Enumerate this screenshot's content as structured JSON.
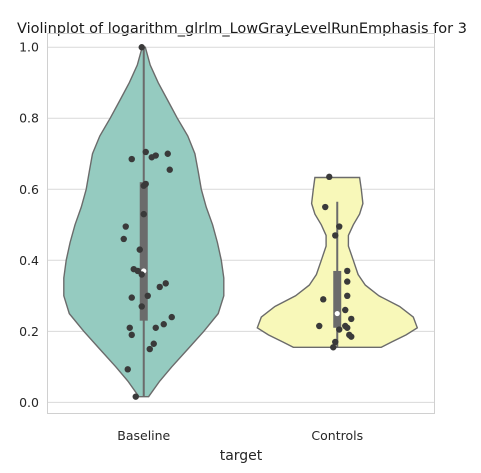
{
  "chart_data": {
    "type": "violin",
    "title": "Violinplot of logarithm_glrlm_LowGrayLevelRunEmphasis for 3",
    "xlabel": "target",
    "ylabel": "",
    "ylim": [
      -0.03,
      1.04
    ],
    "y_ticks": [
      "0.0",
      "0.2",
      "0.4",
      "0.6",
      "0.8",
      "1.0"
    ],
    "grid": "horizontal",
    "categories": [
      "Baseline",
      "Controls"
    ],
    "colors": [
      "#95cbc0",
      "#f8f8b9"
    ],
    "series": [
      {
        "category": "Baseline",
        "color": "#95cbc0",
        "range": [
          0.016,
          1.0
        ],
        "box": {
          "q1": 0.23,
          "median": 0.37,
          "q3": 0.62,
          "whisker_low": 0.016,
          "whisker_high": 1.0
        },
        "density": [
          [
            0.016,
            0.06
          ],
          [
            0.06,
            0.2
          ],
          [
            0.1,
            0.35
          ],
          [
            0.15,
            0.55
          ],
          [
            0.2,
            0.75
          ],
          [
            0.25,
            0.93
          ],
          [
            0.3,
            1.0
          ],
          [
            0.35,
            1.0
          ],
          [
            0.4,
            0.97
          ],
          [
            0.45,
            0.92
          ],
          [
            0.5,
            0.86
          ],
          [
            0.55,
            0.78
          ],
          [
            0.6,
            0.72
          ],
          [
            0.65,
            0.68
          ],
          [
            0.7,
            0.64
          ],
          [
            0.75,
            0.55
          ],
          [
            0.8,
            0.42
          ],
          [
            0.85,
            0.3
          ],
          [
            0.9,
            0.18
          ],
          [
            0.95,
            0.08
          ],
          [
            1.0,
            0.02
          ]
        ],
        "points": [
          [
            0.016,
            -0.2
          ],
          [
            0.093,
            -0.4
          ],
          [
            0.19,
            -0.3
          ],
          [
            0.21,
            -0.35
          ],
          [
            0.15,
            0.15
          ],
          [
            0.165,
            0.25
          ],
          [
            0.21,
            0.3
          ],
          [
            0.22,
            0.5
          ],
          [
            0.24,
            0.7
          ],
          [
            0.27,
            -0.05
          ],
          [
            0.295,
            -0.3
          ],
          [
            0.3,
            0.1
          ],
          [
            0.325,
            0.4
          ],
          [
            0.335,
            0.55
          ],
          [
            0.36,
            -0.05
          ],
          [
            0.37,
            -0.15
          ],
          [
            0.375,
            -0.25
          ],
          [
            0.43,
            -0.1
          ],
          [
            0.46,
            -0.5
          ],
          [
            0.495,
            -0.45
          ],
          [
            0.53,
            0.0
          ],
          [
            0.61,
            0.0
          ],
          [
            0.615,
            0.05
          ],
          [
            0.655,
            0.65
          ],
          [
            0.685,
            -0.3
          ],
          [
            0.69,
            0.2
          ],
          [
            0.695,
            0.3
          ],
          [
            0.7,
            0.6
          ],
          [
            0.705,
            0.05
          ],
          [
            1.0,
            -0.05
          ]
        ]
      },
      {
        "category": "Controls",
        "color": "#f8f8b9",
        "range": [
          0.155,
          0.633
        ],
        "box": {
          "q1": 0.21,
          "median": 0.25,
          "q3": 0.37,
          "whisker_low": 0.155,
          "whisker_high": 0.565
        },
        "density": [
          [
            0.155,
            0.55
          ],
          [
            0.17,
            0.68
          ],
          [
            0.19,
            0.86
          ],
          [
            0.21,
            1.0
          ],
          [
            0.24,
            0.95
          ],
          [
            0.27,
            0.78
          ],
          [
            0.3,
            0.52
          ],
          [
            0.33,
            0.35
          ],
          [
            0.36,
            0.26
          ],
          [
            0.4,
            0.2
          ],
          [
            0.44,
            0.14
          ],
          [
            0.47,
            0.14
          ],
          [
            0.5,
            0.2
          ],
          [
            0.53,
            0.28
          ],
          [
            0.56,
            0.32
          ],
          [
            0.6,
            0.3
          ],
          [
            0.633,
            0.28
          ]
        ],
        "points": [
          [
            0.155,
            -0.1
          ],
          [
            0.17,
            -0.05
          ],
          [
            0.185,
            0.35
          ],
          [
            0.19,
            0.3
          ],
          [
            0.205,
            0.05
          ],
          [
            0.21,
            0.25
          ],
          [
            0.215,
            0.2
          ],
          [
            0.215,
            -0.45
          ],
          [
            0.235,
            0.35
          ],
          [
            0.26,
            0.2
          ],
          [
            0.29,
            -0.35
          ],
          [
            0.3,
            0.25
          ],
          [
            0.34,
            0.25
          ],
          [
            0.37,
            0.25
          ],
          [
            0.47,
            -0.05
          ],
          [
            0.495,
            0.05
          ],
          [
            0.55,
            -0.3
          ],
          [
            0.635,
            -0.2
          ]
        ]
      }
    ]
  }
}
